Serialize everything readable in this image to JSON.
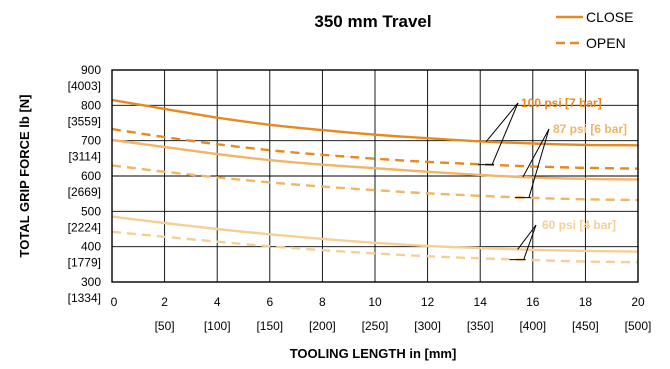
{
  "chart_data": {
    "type": "line",
    "title": "350 mm Travel",
    "xlabel": "TOOLING LENGTH in [mm]",
    "ylabel": "TOTAL GRIP FORCE  lb [N]",
    "x_ticks": [
      "0",
      "2",
      "4",
      "6",
      "8",
      "10",
      "12",
      "14",
      "16",
      "18",
      "20"
    ],
    "x_ticks_metric": [
      "[50]",
      "[100]",
      "[150]",
      "[200]",
      "[250]",
      "[300]",
      "[350]",
      "[400]",
      "[450]",
      "[500]"
    ],
    "y_ticks": [
      "900",
      "800",
      "700",
      "600",
      "500",
      "400",
      "300"
    ],
    "y_ticks_metric": [
      "[4003]",
      "[3559]",
      "[3114]",
      "[2669]",
      "[2224]",
      "[1779]",
      "[1334]"
    ],
    "xlim": [
      0,
      20
    ],
    "ylim": [
      300,
      900
    ],
    "grid": true,
    "legend": {
      "position": "top-right",
      "entries": [
        "CLOSE",
        "OPEN"
      ]
    },
    "pressure_labels": [
      "100 psi [7 bar]",
      "87 psi [6 bar]",
      "60 psi [4 bar]"
    ],
    "colors": {
      "100": "#e58a1f",
      "87": "#f0b567",
      "60": "#f5cf98",
      "legend": "#e58a1f"
    },
    "x": [
      0,
      2,
      4,
      6,
      8,
      10,
      12,
      14,
      16,
      18,
      20
    ],
    "series": [
      {
        "pressure": "100",
        "mode": "CLOSE",
        "values": [
          815,
          790,
          765,
          745,
          730,
          717,
          707,
          698,
          692,
          688,
          687
        ]
      },
      {
        "pressure": "100",
        "mode": "OPEN",
        "values": [
          733,
          710,
          690,
          673,
          660,
          649,
          640,
          633,
          627,
          623,
          621
        ]
      },
      {
        "pressure": "87",
        "mode": "CLOSE",
        "values": [
          702,
          682,
          662,
          645,
          632,
          622,
          612,
          603,
          596,
          592,
          590
        ]
      },
      {
        "pressure": "87",
        "mode": "OPEN",
        "values": [
          630,
          612,
          596,
          582,
          570,
          560,
          551,
          544,
          538,
          534,
          532
        ]
      },
      {
        "pressure": "60",
        "mode": "CLOSE",
        "values": [
          485,
          467,
          450,
          435,
          422,
          411,
          402,
          396,
          391,
          388,
          386
        ]
      },
      {
        "pressure": "60",
        "mode": "OPEN",
        "values": [
          442,
          428,
          414,
          401,
          390,
          381,
          373,
          367,
          362,
          358,
          356
        ]
      }
    ]
  }
}
